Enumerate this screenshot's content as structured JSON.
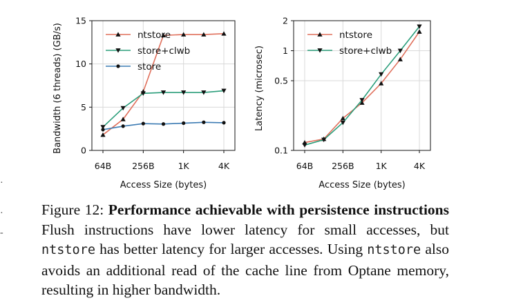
{
  "chart_data": [
    {
      "type": "line",
      "ylabel": "Bandwidth (6 threads) (GB/s)",
      "xlabel": "Access Size (bytes)",
      "x_scale": "log2",
      "x": [
        64,
        128,
        256,
        512,
        1024,
        2048,
        4096
      ],
      "x_ticks": [
        64,
        256,
        1024,
        4096
      ],
      "x_tick_labels": [
        "64B",
        "256B",
        "1K",
        "4K"
      ],
      "ylim": [
        0,
        15
      ],
      "y_ticks": [
        0,
        5,
        10,
        15
      ],
      "y_tick_labels": [
        "0",
        "5",
        "10",
        "15"
      ],
      "grid": true,
      "legend": "top-left",
      "series": [
        {
          "name": "ntstore",
          "marker": "triangle-up",
          "color": "#e0705c",
          "values": [
            1.8,
            3.6,
            6.8,
            13.3,
            13.4,
            13.4,
            13.5
          ]
        },
        {
          "name": "store+clwb",
          "marker": "triangle-down",
          "color": "#2a9d7a",
          "values": [
            2.7,
            4.9,
            6.6,
            6.7,
            6.7,
            6.7,
            6.9
          ]
        },
        {
          "name": "store",
          "marker": "circle",
          "color": "#3c7bb3",
          "values": [
            2.4,
            2.8,
            3.1,
            3.05,
            3.15,
            3.25,
            3.2
          ]
        }
      ]
    },
    {
      "type": "line",
      "ylabel": "Latency (microsec)",
      "xlabel": "Access Size (bytes)",
      "x_scale": "log2",
      "y_scale": "log",
      "x": [
        64,
        128,
        256,
        512,
        1024,
        2048,
        4096
      ],
      "x_ticks": [
        64,
        256,
        1024,
        4096
      ],
      "x_tick_labels": [
        "64B",
        "256B",
        "1K",
        "4K"
      ],
      "ylim": [
        0.1,
        2
      ],
      "y_ticks": [
        0.1,
        0.5,
        1,
        2
      ],
      "y_tick_labels": [
        "0.1",
        "0.5",
        "1",
        "2"
      ],
      "grid": true,
      "legend": "top-left",
      "series": [
        {
          "name": "ntstore",
          "marker": "triangle-up",
          "color": "#e0705c",
          "values": [
            0.12,
            0.13,
            0.21,
            0.3,
            0.47,
            0.82,
            1.55
          ]
        },
        {
          "name": "store+clwb",
          "marker": "triangle-down",
          "color": "#2a9d7a",
          "values": [
            0.113,
            0.128,
            0.19,
            0.32,
            0.58,
            1.0,
            1.75
          ]
        }
      ]
    }
  ],
  "caption": {
    "prefix": "Figure 12: ",
    "bold": "Performance achievable with persistence instructions",
    "text1": " Flush instructions have lower latency for small accesses, but ",
    "code1": "ntstore",
    "text2": " has better latency for larger accesses. Using ",
    "code2": "ntstore",
    "text3": " also avoids an additional read of the cache line from Optane memory, resulting in higher bandwidth."
  }
}
